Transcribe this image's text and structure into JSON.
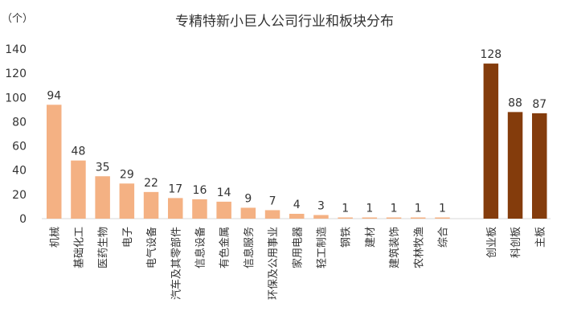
{
  "chart_data": {
    "type": "bar",
    "title": "专精特新小巨人公司行业和板块分布",
    "unit_label": "（个）",
    "ylim": [
      0,
      140
    ],
    "yticks": [
      0,
      20,
      40,
      60,
      80,
      100,
      120,
      140
    ],
    "grid": false,
    "categories": [
      "机械",
      "基础化工",
      "医药生物",
      "电子",
      "电气设备",
      "汽车及其零部件",
      "信息设备",
      "有色金属",
      "信息服务",
      "环保及公用事业",
      "家用电器",
      "轻工制造",
      "钢铁",
      "建材",
      "建筑装饰",
      "农林牧渔",
      "综合",
      "创业板",
      "科创板",
      "主板"
    ],
    "values": [
      94,
      48,
      35,
      29,
      22,
      17,
      16,
      14,
      9,
      7,
      4,
      3,
      1,
      1,
      1,
      1,
      1,
      128,
      88,
      87
    ],
    "series_groups": [
      {
        "group": "industry",
        "color": "#F4B183",
        "count": 17
      },
      {
        "group": "board",
        "color": "#843C0C",
        "count": 3
      }
    ]
  }
}
